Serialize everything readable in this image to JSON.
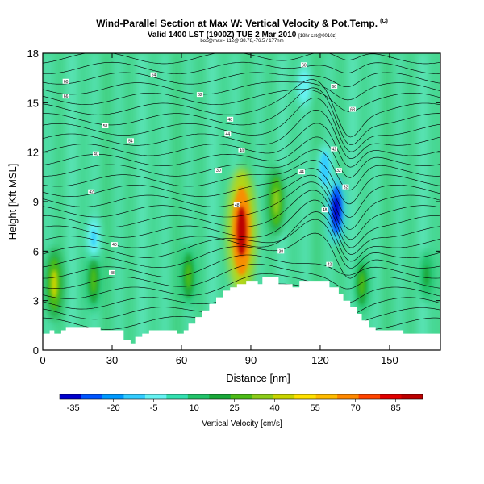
{
  "chart_data": {
    "type": "heatmap",
    "title": "Wind-Parallel Section at Max W: Vertical Velocity & Pot.Temp.",
    "title_mark": "(C)",
    "subtitle": "Valid 1400 LST (1900Z) TUE 2 Mar 2010",
    "subtitle_info": "[18hr cst@0010z]",
    "subtitle_line2": "box@max= 112@ 38.78,-76.5 / 177nm",
    "xlabel": "Distance [nm]",
    "ylabel": "Height [Kft MSL]",
    "xlim": [
      0,
      172
    ],
    "ylim": [
      0,
      18
    ],
    "x_ticks": [
      0,
      30,
      60,
      90,
      120,
      150
    ],
    "y_ticks": [
      0,
      3,
      6,
      9,
      12,
      15,
      18
    ],
    "colorbar": {
      "label": "Vertical Velocity [cm/s]",
      "tick_labels": [
        "-35",
        "-20",
        "-5",
        "10",
        "25",
        "40",
        "55",
        "70",
        "85"
      ],
      "range": [
        -40,
        95
      ],
      "colors": [
        "#0000cc",
        "#0055ff",
        "#0099ff",
        "#33ccff",
        "#66f2f2",
        "#33e0b0",
        "#22c36a",
        "#1aa83a",
        "#4cbb17",
        "#8ccc1a",
        "#c8d400",
        "#ffe000",
        "#ffbb00",
        "#ff8800",
        "#ff4400",
        "#e00000",
        "#bb0000"
      ]
    },
    "terrain_top_kft": [
      [
        0,
        1.0
      ],
      [
        3,
        1.0
      ],
      [
        3,
        1.2
      ],
      [
        5,
        1.2
      ],
      [
        5,
        1.0
      ],
      [
        8,
        1.0
      ],
      [
        8,
        1.2
      ],
      [
        10,
        1.2
      ],
      [
        10,
        1.4
      ],
      [
        25,
        1.4
      ],
      [
        25,
        1.2
      ],
      [
        35,
        1.2
      ],
      [
        35,
        0.6
      ],
      [
        38,
        0.6
      ],
      [
        38,
        0.4
      ],
      [
        40,
        0.4
      ],
      [
        40,
        0.8
      ],
      [
        43,
        0.8
      ],
      [
        43,
        1.0
      ],
      [
        46,
        1.0
      ],
      [
        46,
        1.2
      ],
      [
        58,
        1.2
      ],
      [
        58,
        1.0
      ],
      [
        61,
        1.0
      ],
      [
        61,
        1.2
      ],
      [
        63,
        1.2
      ],
      [
        63,
        1.6
      ],
      [
        66,
        1.6
      ],
      [
        66,
        2.0
      ],
      [
        69,
        2.0
      ],
      [
        69,
        2.4
      ],
      [
        72,
        2.4
      ],
      [
        72,
        2.8
      ],
      [
        75,
        2.8
      ],
      [
        75,
        3.2
      ],
      [
        78,
        3.2
      ],
      [
        78,
        3.6
      ],
      [
        81,
        3.6
      ],
      [
        81,
        3.8
      ],
      [
        84,
        3.8
      ],
      [
        84,
        4.0
      ],
      [
        88,
        4.0
      ],
      [
        88,
        4.2
      ],
      [
        93,
        4.2
      ],
      [
        93,
        4.0
      ],
      [
        95,
        4.0
      ],
      [
        95,
        4.4
      ],
      [
        102,
        4.4
      ],
      [
        102,
        4.0
      ],
      [
        108,
        4.0
      ],
      [
        108,
        3.8
      ],
      [
        111,
        3.8
      ],
      [
        111,
        4.2
      ],
      [
        124,
        4.2
      ],
      [
        124,
        3.8
      ],
      [
        128,
        3.8
      ],
      [
        128,
        3.4
      ],
      [
        130,
        3.4
      ],
      [
        130,
        3.0
      ],
      [
        133,
        3.0
      ],
      [
        133,
        2.6
      ],
      [
        136,
        2.6
      ],
      [
        136,
        2.2
      ],
      [
        138,
        2.2
      ],
      [
        138,
        1.8
      ],
      [
        141,
        1.8
      ],
      [
        141,
        1.4
      ],
      [
        144,
        1.4
      ],
      [
        144,
        1.2
      ],
      [
        156,
        1.2
      ],
      [
        156,
        1.0
      ],
      [
        172,
        1.0
      ]
    ],
    "updraft_cores": [
      {
        "x": 86,
        "y": 7.2,
        "w_cm_s": 92
      },
      {
        "x": 5,
        "y": 4.0,
        "w_cm_s": 40
      },
      {
        "x": 22,
        "y": 4.2,
        "w_cm_s": 30
      },
      {
        "x": 63,
        "y": 4.5,
        "w_cm_s": 30
      },
      {
        "x": 101,
        "y": 9.0,
        "w_cm_s": 35
      },
      {
        "x": 138,
        "y": 4.0,
        "w_cm_s": 25
      },
      {
        "x": 166,
        "y": 4.5,
        "w_cm_s": 20
      }
    ],
    "downdraft_cores": [
      {
        "x": 127,
        "y": 8.5,
        "w_cm_s": -35
      },
      {
        "x": 122,
        "y": 11.0,
        "w_cm_s": -15
      },
      {
        "x": 22,
        "y": 6.8,
        "w_cm_s": -10
      },
      {
        "x": 113,
        "y": 16.0,
        "w_cm_s": -8
      }
    ],
    "isentrope_labels": [
      {
        "x": 10,
        "y": 15.4,
        "text": "66"
      },
      {
        "x": 10,
        "y": 16.3,
        "text": "60"
      },
      {
        "x": 48,
        "y": 16.7,
        "text": "64"
      },
      {
        "x": 68,
        "y": 15.5,
        "text": "62"
      },
      {
        "x": 27,
        "y": 13.6,
        "text": "58"
      },
      {
        "x": 38,
        "y": 12.7,
        "text": "54"
      },
      {
        "x": 23,
        "y": 11.9,
        "text": "40"
      },
      {
        "x": 81,
        "y": 14.0,
        "text": "46"
      },
      {
        "x": 80,
        "y": 13.1,
        "text": "44"
      },
      {
        "x": 86,
        "y": 12.1,
        "text": "40"
      },
      {
        "x": 76,
        "y": 10.9,
        "text": "30"
      },
      {
        "x": 21,
        "y": 9.6,
        "text": "42"
      },
      {
        "x": 31,
        "y": 6.4,
        "text": "40"
      },
      {
        "x": 30,
        "y": 4.7,
        "text": "48"
      },
      {
        "x": 84,
        "y": 8.8,
        "text": "48"
      },
      {
        "x": 112,
        "y": 10.8,
        "text": "44"
      },
      {
        "x": 126,
        "y": 12.2,
        "text": "42"
      },
      {
        "x": 128,
        "y": 10.9,
        "text": "32"
      },
      {
        "x": 131,
        "y": 9.9,
        "text": "32"
      },
      {
        "x": 134,
        "y": 14.6,
        "text": "68"
      },
      {
        "x": 113,
        "y": 17.3,
        "text": "60"
      },
      {
        "x": 126,
        "y": 16.0,
        "text": "66"
      },
      {
        "x": 122,
        "y": 8.5,
        "text": "48"
      },
      {
        "x": 124,
        "y": 5.2,
        "text": "42"
      },
      {
        "x": 103,
        "y": 6.0,
        "text": "38"
      }
    ]
  }
}
